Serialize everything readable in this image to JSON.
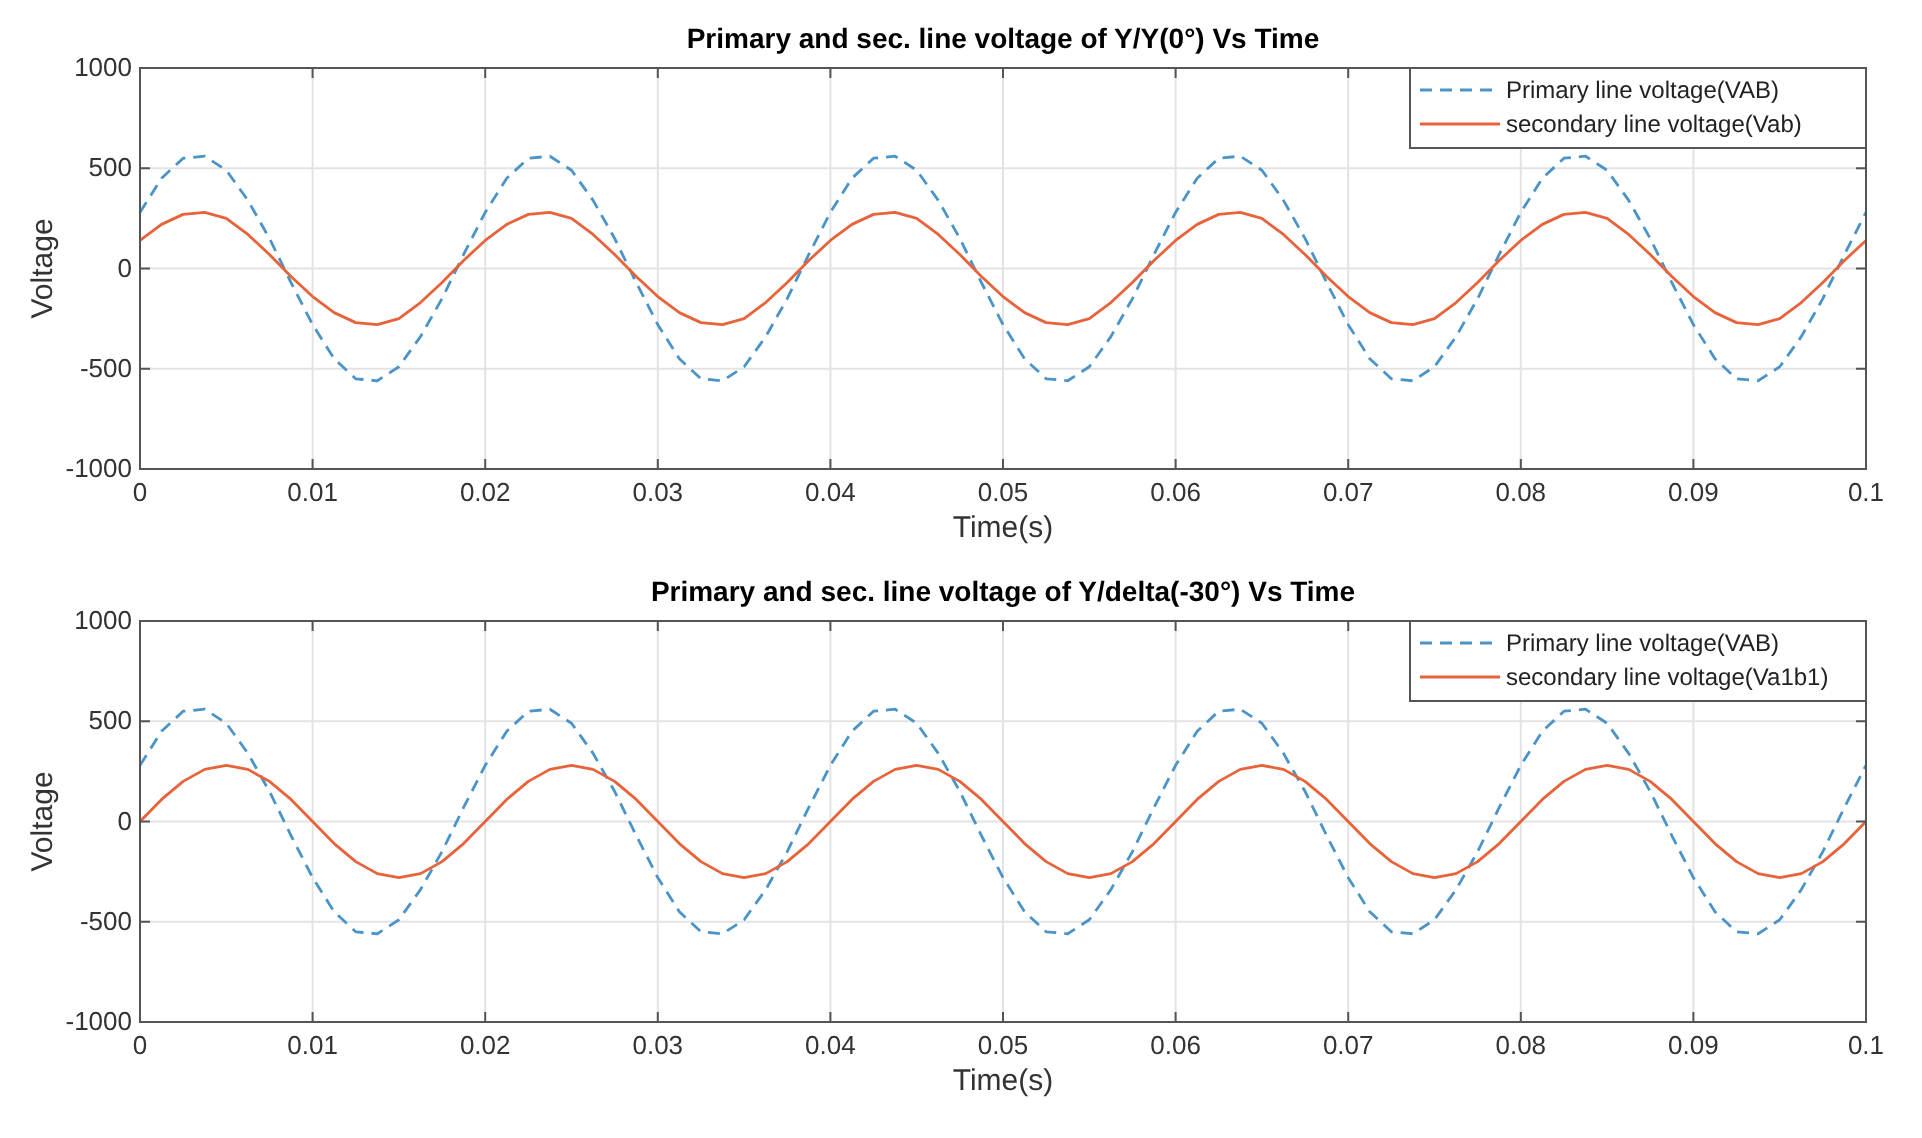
{
  "chart_data": [
    {
      "type": "line",
      "title": "Primary and sec. line voltage of Y/Y(0°) Vs Time",
      "xlabel": "Time(s)",
      "ylabel": "Voltage",
      "xlim": [
        0,
        0.1
      ],
      "xticks": [
        0,
        0.01,
        0.02,
        0.03,
        0.04,
        0.05,
        0.06,
        0.07,
        0.08,
        0.09,
        0.1
      ],
      "ylim": [
        -1000,
        1000
      ],
      "yticks": [
        -1000,
        -500,
        0,
        500,
        1000
      ],
      "grid": true,
      "legend": "top right",
      "marker": "none",
      "x": [
        0,
        0.00125,
        0.0025,
        0.00375,
        0.005,
        0.00625,
        0.0075,
        0.00875,
        0.01,
        0.01125,
        0.0125,
        0.01375,
        0.015,
        0.01625,
        0.0175,
        0.01875,
        0.02,
        0.02125,
        0.0225,
        0.02375,
        0.025,
        0.02625,
        0.0275,
        0.02875,
        0.03,
        0.03125,
        0.0325,
        0.03375,
        0.035,
        0.03625,
        0.0375,
        0.03875,
        0.04,
        0.04125,
        0.0425,
        0.04375,
        0.045,
        0.04625,
        0.0475,
        0.04875,
        0.05,
        0.05125,
        0.0525,
        0.05375,
        0.055,
        0.05625,
        0.0575,
        0.05875,
        0.06,
        0.06125,
        0.0625,
        0.06375,
        0.065,
        0.06625,
        0.0675,
        0.06875,
        0.07,
        0.07125,
        0.0725,
        0.07375,
        0.075,
        0.07625,
        0.0775,
        0.07875,
        0.08,
        0.08125,
        0.0825,
        0.08375,
        0.085,
        0.08625,
        0.0875,
        0.08875,
        0.09,
        0.09125,
        0.0925,
        0.09375,
        0.095,
        0.09625,
        0.0975,
        0.09875,
        0.1
      ],
      "series": [
        {
          "name": "Primary line voltage(VAB)",
          "color": "#4a94c8",
          "line_style": "dashed",
          "values": [
            280,
            450,
            550,
            560,
            490,
            340,
            150,
            -70,
            -280,
            -450,
            -550,
            -560,
            -490,
            -340,
            -150,
            70,
            280,
            450,
            550,
            560,
            490,
            340,
            150,
            -70,
            -280,
            -450,
            -550,
            -560,
            -490,
            -340,
            -150,
            70,
            280,
            450,
            550,
            560,
            490,
            340,
            150,
            -70,
            -280,
            -450,
            -550,
            -560,
            -490,
            -340,
            -150,
            70,
            280,
            450,
            550,
            560,
            490,
            340,
            150,
            -70,
            -280,
            -450,
            -550,
            -560,
            -490,
            -340,
            -150,
            70,
            280,
            450,
            550,
            560,
            490,
            340,
            150,
            -70,
            -280,
            -450,
            -550,
            -560,
            -490,
            -340,
            -150,
            70,
            280
          ]
        },
        {
          "name": "secondary line voltage(Vab)",
          "color": "#e8633a",
          "line_style": "solid",
          "values": [
            140,
            220,
            270,
            280,
            250,
            170,
            70,
            -40,
            -140,
            -220,
            -270,
            -280,
            -250,
            -170,
            -70,
            40,
            140,
            220,
            270,
            280,
            250,
            170,
            70,
            -40,
            -140,
            -220,
            -270,
            -280,
            -250,
            -170,
            -70,
            40,
            140,
            220,
            270,
            280,
            250,
            170,
            70,
            -40,
            -140,
            -220,
            -270,
            -280,
            -250,
            -170,
            -70,
            40,
            140,
            220,
            270,
            280,
            250,
            170,
            70,
            -40,
            -140,
            -220,
            -270,
            -280,
            -250,
            -170,
            -70,
            40,
            140,
            220,
            270,
            280,
            250,
            170,
            70,
            -40,
            -140,
            -220,
            -270,
            -280,
            -250,
            -170,
            -70,
            40,
            140
          ]
        }
      ]
    },
    {
      "type": "line",
      "title": "Primary and sec. line voltage of Y/delta(-30°) Vs Time",
      "xlabel": "Time(s)",
      "ylabel": "Voltage",
      "xlim": [
        0,
        0.1
      ],
      "xticks": [
        0,
        0.01,
        0.02,
        0.03,
        0.04,
        0.05,
        0.06,
        0.07,
        0.08,
        0.09,
        0.1
      ],
      "ylim": [
        -1000,
        1000
      ],
      "yticks": [
        -1000,
        -500,
        0,
        500,
        1000
      ],
      "grid": true,
      "legend": "top right",
      "marker": "none",
      "x": [
        0,
        0.00125,
        0.0025,
        0.00375,
        0.005,
        0.00625,
        0.0075,
        0.00875,
        0.01,
        0.01125,
        0.0125,
        0.01375,
        0.015,
        0.01625,
        0.0175,
        0.01875,
        0.02,
        0.02125,
        0.0225,
        0.02375,
        0.025,
        0.02625,
        0.0275,
        0.02875,
        0.03,
        0.03125,
        0.0325,
        0.03375,
        0.035,
        0.03625,
        0.0375,
        0.03875,
        0.04,
        0.04125,
        0.0425,
        0.04375,
        0.045,
        0.04625,
        0.0475,
        0.04875,
        0.05,
        0.05125,
        0.0525,
        0.05375,
        0.055,
        0.05625,
        0.0575,
        0.05875,
        0.06,
        0.06125,
        0.0625,
        0.06375,
        0.065,
        0.06625,
        0.0675,
        0.06875,
        0.07,
        0.07125,
        0.0725,
        0.07375,
        0.075,
        0.07625,
        0.0775,
        0.07875,
        0.08,
        0.08125,
        0.0825,
        0.08375,
        0.085,
        0.08625,
        0.0875,
        0.08875,
        0.09,
        0.09125,
        0.0925,
        0.09375,
        0.095,
        0.09625,
        0.0975,
        0.09875,
        0.1
      ],
      "series": [
        {
          "name": "Primary line voltage(VAB)",
          "color": "#4a94c8",
          "line_style": "dashed",
          "values": [
            280,
            450,
            550,
            560,
            490,
            340,
            150,
            -70,
            -280,
            -450,
            -550,
            -560,
            -490,
            -340,
            -150,
            70,
            280,
            450,
            550,
            560,
            490,
            340,
            150,
            -70,
            -280,
            -450,
            -550,
            -560,
            -490,
            -340,
            -150,
            70,
            280,
            450,
            550,
            560,
            490,
            340,
            150,
            -70,
            -280,
            -450,
            -550,
            -560,
            -490,
            -340,
            -150,
            70,
            280,
            450,
            550,
            560,
            490,
            340,
            150,
            -70,
            -280,
            -450,
            -550,
            -560,
            -490,
            -340,
            -150,
            70,
            280,
            450,
            550,
            560,
            490,
            340,
            150,
            -70,
            -280,
            -450,
            -550,
            -560,
            -490,
            -340,
            -150,
            70,
            280
          ]
        },
        {
          "name": "secondary line voltage(Va1b1)",
          "color": "#e8633a",
          "line_style": "solid",
          "values": [
            0,
            110,
            200,
            260,
            280,
            260,
            200,
            110,
            0,
            -110,
            -200,
            -260,
            -280,
            -260,
            -200,
            -110,
            0,
            110,
            200,
            260,
            280,
            260,
            200,
            110,
            0,
            -110,
            -200,
            -260,
            -280,
            -260,
            -200,
            -110,
            0,
            110,
            200,
            260,
            280,
            260,
            200,
            110,
            0,
            -110,
            -200,
            -260,
            -280,
            -260,
            -200,
            -110,
            0,
            110,
            200,
            260,
            280,
            260,
            200,
            110,
            0,
            -110,
            -200,
            -260,
            -280,
            -260,
            -200,
            -110,
            0,
            110,
            200,
            260,
            280,
            260,
            200,
            110,
            0,
            -110,
            -200,
            -260,
            -280,
            -260,
            -200,
            -110,
            0
          ]
        }
      ]
    }
  ]
}
